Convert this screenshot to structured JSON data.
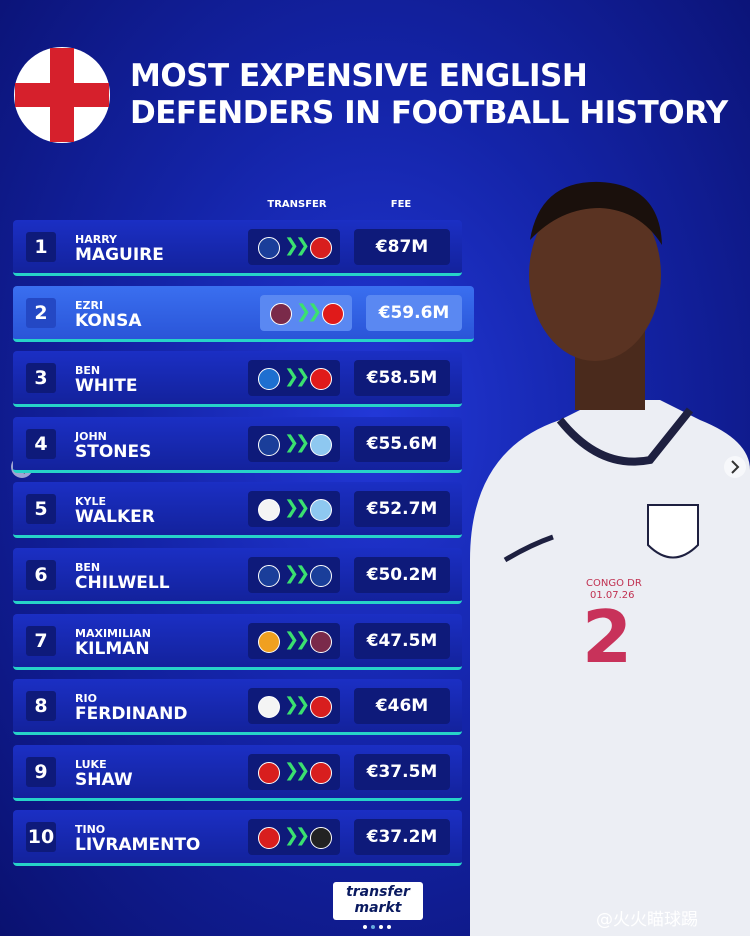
{
  "header": {
    "title_line1": "MOST EXPENSIVE ENGLISH",
    "title_line2": "DEFENDERS IN FOOTBALL HISTORY"
  },
  "table": {
    "columns": [
      "TRANSFER",
      "FEE"
    ],
    "rows": [
      [
        "1",
        "HARRY",
        "MAGUIRE",
        "€87M"
      ],
      [
        "2",
        "EZRI",
        "KONSA",
        "€59.6M"
      ],
      [
        "3",
        "BEN",
        "WHITE",
        "€58.5M"
      ],
      [
        "4",
        "JOHN",
        "STONES",
        "€55.6M"
      ],
      [
        "5",
        "KYLE",
        "WALKER",
        "€52.7M"
      ],
      [
        "6",
        "BEN",
        "CHILWELL",
        "€50.2M"
      ],
      [
        "7",
        "MAXIMILIAN",
        "KILMAN",
        "€47.5M"
      ],
      [
        "8",
        "RIO",
        "FERDINAND",
        "€46M"
      ],
      [
        "9",
        "LUKE",
        "SHAW",
        "€37.5M"
      ],
      [
        "10",
        "TINO",
        "LIVRAMENTO",
        "€37.2M"
      ]
    ]
  },
  "photo": {
    "shirt_number": "2",
    "shirt_text": "CONGO DR",
    "shirt_date": "01.07.26"
  },
  "footer": {
    "logo_line1": "transfer",
    "logo_line2": "markt",
    "watermark": "@火火瞄球踢"
  }
}
